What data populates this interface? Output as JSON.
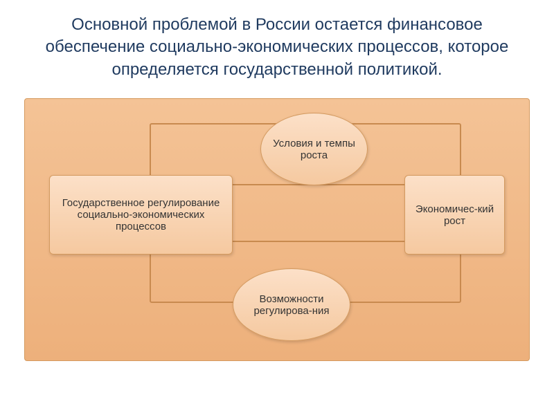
{
  "title": "Основной проблемой в России остается финансовое обеспечение социально-экономических процессов, которое определяется государственной политикой.",
  "diagram": {
    "type": "flowchart",
    "background_gradient": [
      "#f4c396",
      "#edb07b"
    ],
    "node_gradient": [
      "#fce0c8",
      "#f5c9a0"
    ],
    "border_color": "#d49a5f",
    "connector_color": "#c88a4f",
    "text_color": "#333333",
    "title_color": "#1f3a5f",
    "title_fontsize": 24,
    "node_fontsize": 15,
    "nodes": {
      "left": "Государственное регулирование социально-экономических  процессов",
      "right": "Экономичес-кий рост",
      "top_ellipse": "Условия и темпы роста",
      "bottom_ellipse": "Возможности регулирова-ния"
    }
  }
}
